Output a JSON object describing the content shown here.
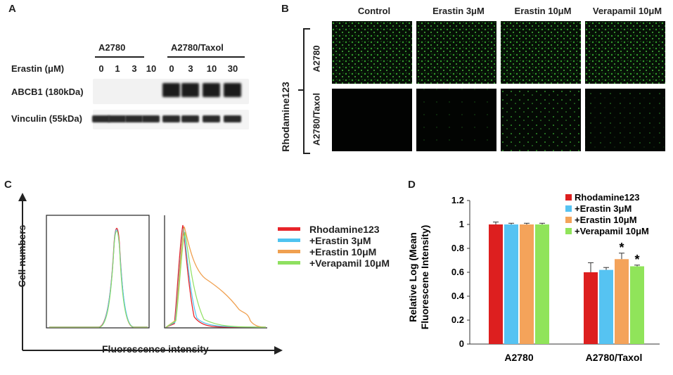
{
  "panels": {
    "a": "A",
    "b": "B",
    "c": "C",
    "d": "D"
  },
  "panel_a": {
    "group1": "A2780",
    "group2": "A2780/Taxol",
    "erastin_label": "Erastin (μM)",
    "doses": [
      "0",
      "1",
      "3",
      "10",
      "0",
      "3",
      "10",
      "30"
    ],
    "row1": "ABCB1 (180kDa)",
    "row2": "Vinculin (55kDa)"
  },
  "panel_b": {
    "columns": [
      "Control",
      "Erastin 3μM",
      "Erastin 10μM",
      "Verapamil 10μM"
    ],
    "rows": [
      "A2780",
      "A2780/Taxol"
    ],
    "side_label": "Rhodamine123"
  },
  "panel_c": {
    "y_label": "Cell numbers",
    "x_label": "Fluorescence intensity",
    "legend": [
      {
        "name": "Rhodamine123",
        "color": "#e8242a"
      },
      {
        "name": "+Erastin 3μM",
        "color": "#4fc3f0"
      },
      {
        "name": "+Erastin 10μM",
        "color": "#f0a050"
      },
      {
        "name": "+Verapamil 10μM",
        "color": "#8fe060"
      }
    ]
  },
  "chart_data": {
    "type": "bar",
    "categories": [
      "A2780",
      "A2780/Taxol"
    ],
    "ylabel": "Relative Log (Mean Fluorescene Intensity)",
    "ylabel_line1": "Relative Log (Mean",
    "ylabel_line2": "Fluorescene Intensity)",
    "ylim": [
      0,
      1.2
    ],
    "yticks": [
      "0",
      "0.2",
      "0.4",
      "0.6",
      "0.8",
      "1",
      "1.2"
    ],
    "series": [
      {
        "name": "Rhodamine123",
        "color": "#dd1f1f",
        "values": [
          1.0,
          0.6
        ],
        "errors": [
          0.02,
          0.08
        ],
        "marks": [
          "",
          ""
        ]
      },
      {
        "name": "+Erastin 3μM",
        "color": "#56c3f2",
        "values": [
          1.0,
          0.62
        ],
        "errors": [
          0.01,
          0.02
        ],
        "marks": [
          "",
          ""
        ]
      },
      {
        "name": "+Erastin 10μM",
        "color": "#f4a35a",
        "values": [
          1.0,
          0.71
        ],
        "errors": [
          0.01,
          0.05
        ],
        "marks": [
          "",
          "*"
        ]
      },
      {
        "name": "+Verapamil 10μM",
        "color": "#90e45a",
        "values": [
          1.0,
          0.65
        ],
        "errors": [
          0.01,
          0.01
        ],
        "marks": [
          "",
          "*"
        ]
      }
    ],
    "legend_position": "top-right",
    "grid": false
  }
}
